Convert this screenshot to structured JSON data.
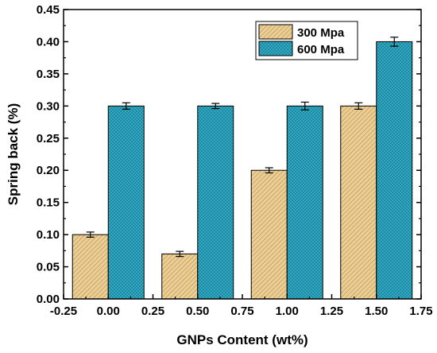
{
  "chart_data": {
    "type": "bar",
    "xlabel": "GNPs Content (wt%)",
    "ylabel": "Spring back (%)",
    "xlim": [
      -0.25,
      1.75
    ],
    "ylim": [
      0,
      0.45
    ],
    "x_ticks": [
      "-0.25",
      "0.00",
      "0.25",
      "0.50",
      "0.75",
      "1.00",
      "1.25",
      "1.50",
      "1.75"
    ],
    "y_ticks": [
      "0.00",
      "0.05",
      "0.10",
      "0.15",
      "0.20",
      "0.25",
      "0.30",
      "0.35",
      "0.40",
      "0.45"
    ],
    "x": [
      0.0,
      0.5,
      1.0,
      1.5
    ],
    "series": [
      {
        "name": "300 Mpa",
        "values": [
          0.1,
          0.07,
          0.2,
          0.3
        ],
        "errors": [
          0.004,
          0.004,
          0.004,
          0.005
        ],
        "color": "#e8c88a",
        "hatch": "diagonal"
      },
      {
        "name": "600 Mpa",
        "values": [
          0.3,
          0.3,
          0.3,
          0.4
        ],
        "errors": [
          0.005,
          0.004,
          0.006,
          0.007
        ],
        "color": "#2aaac2",
        "hatch": "crosshatch"
      }
    ],
    "legend_position": "top-right",
    "grid": false
  }
}
